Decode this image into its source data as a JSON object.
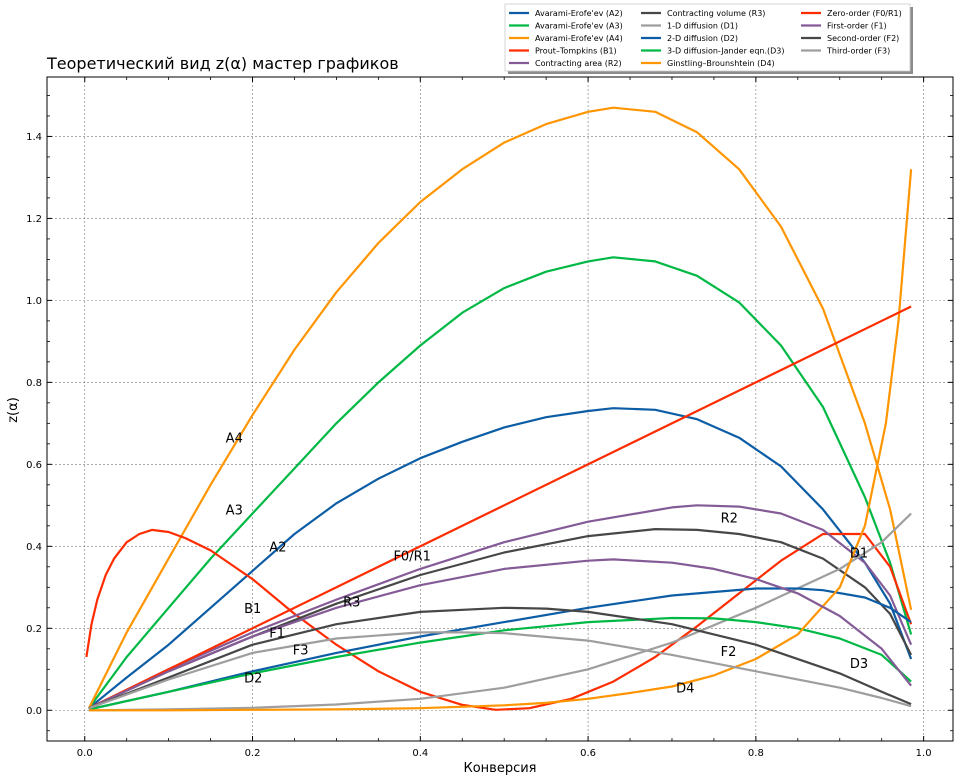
{
  "chart_data": {
    "type": "line",
    "title": "Теоретический вид z(α) мастер графиков",
    "xlabel": "Конверсия",
    "ylabel": "z(α)",
    "xlim": [
      -0.045,
      1.035
    ],
    "ylim": [
      -0.075,
      1.545
    ],
    "xticks": [
      0.0,
      0.2,
      0.4,
      0.6,
      0.8,
      1.0
    ],
    "xtick_labels": [
      "0.0",
      "0.2",
      "0.4",
      "0.6",
      "0.8",
      "1.0"
    ],
    "yticks": [
      0.0,
      0.2,
      0.4,
      0.6,
      0.8,
      1.0,
      1.2,
      1.4
    ],
    "ytick_labels": [
      "0.0",
      "0.2",
      "0.4",
      "0.6",
      "0.8",
      "1.0",
      "1.2",
      "1.4"
    ],
    "grid": true,
    "legend_position": "top-right, above plot",
    "series": [
      {
        "name": "Avarami-Erofe'ev (A2)",
        "color": "#0c5da5",
        "points": [
          [
            0.005,
            0.005
          ],
          [
            0.05,
            0.08
          ],
          [
            0.1,
            0.16
          ],
          [
            0.15,
            0.25
          ],
          [
            0.2,
            0.34
          ],
          [
            0.25,
            0.43
          ],
          [
            0.3,
            0.505
          ],
          [
            0.35,
            0.565
          ],
          [
            0.4,
            0.615
          ],
          [
            0.45,
            0.655
          ],
          [
            0.5,
            0.69
          ],
          [
            0.55,
            0.715
          ],
          [
            0.6,
            0.73
          ],
          [
            0.63,
            0.737
          ],
          [
            0.68,
            0.733
          ],
          [
            0.73,
            0.71
          ],
          [
            0.78,
            0.665
          ],
          [
            0.83,
            0.595
          ],
          [
            0.88,
            0.49
          ],
          [
            0.93,
            0.36
          ],
          [
            0.96,
            0.26
          ],
          [
            0.985,
            0.125
          ]
        ]
      },
      {
        "name": "Avarami-Erofe'ev (A3)",
        "color": "#00b945",
        "points": [
          [
            0.005,
            0.005
          ],
          [
            0.05,
            0.13
          ],
          [
            0.1,
            0.25
          ],
          [
            0.15,
            0.37
          ],
          [
            0.2,
            0.48
          ],
          [
            0.25,
            0.59
          ],
          [
            0.3,
            0.7
          ],
          [
            0.35,
            0.8
          ],
          [
            0.4,
            0.89
          ],
          [
            0.45,
            0.97
          ],
          [
            0.5,
            1.03
          ],
          [
            0.55,
            1.07
          ],
          [
            0.6,
            1.095
          ],
          [
            0.63,
            1.105
          ],
          [
            0.68,
            1.095
          ],
          [
            0.73,
            1.06
          ],
          [
            0.78,
            0.995
          ],
          [
            0.83,
            0.89
          ],
          [
            0.88,
            0.74
          ],
          [
            0.93,
            0.52
          ],
          [
            0.96,
            0.36
          ],
          [
            0.985,
            0.185
          ]
        ]
      },
      {
        "name": "Avarami-Erofe'ev (A4)",
        "color": "#ff9500",
        "points": [
          [
            0.005,
            0.005
          ],
          [
            0.05,
            0.19
          ],
          [
            0.1,
            0.37
          ],
          [
            0.15,
            0.55
          ],
          [
            0.2,
            0.72
          ],
          [
            0.25,
            0.88
          ],
          [
            0.3,
            1.02
          ],
          [
            0.35,
            1.14
          ],
          [
            0.4,
            1.24
          ],
          [
            0.45,
            1.32
          ],
          [
            0.5,
            1.385
          ],
          [
            0.55,
            1.43
          ],
          [
            0.6,
            1.46
          ],
          [
            0.63,
            1.47
          ],
          [
            0.68,
            1.46
          ],
          [
            0.73,
            1.41
          ],
          [
            0.78,
            1.32
          ],
          [
            0.83,
            1.18
          ],
          [
            0.88,
            0.98
          ],
          [
            0.93,
            0.7
          ],
          [
            0.96,
            0.49
          ],
          [
            0.985,
            0.245
          ]
        ]
      },
      {
        "name": "Prout–Tompkins (B1)",
        "color": "#ff2c00",
        "points": [
          [
            0.002,
            0.13
          ],
          [
            0.008,
            0.21
          ],
          [
            0.015,
            0.27
          ],
          [
            0.025,
            0.33
          ],
          [
            0.035,
            0.37
          ],
          [
            0.05,
            0.41
          ],
          [
            0.065,
            0.43
          ],
          [
            0.08,
            0.44
          ],
          [
            0.1,
            0.435
          ],
          [
            0.12,
            0.42
          ],
          [
            0.15,
            0.39
          ],
          [
            0.2,
            0.32
          ],
          [
            0.25,
            0.235
          ],
          [
            0.3,
            0.16
          ],
          [
            0.35,
            0.095
          ],
          [
            0.4,
            0.045
          ],
          [
            0.45,
            0.013
          ],
          [
            0.49,
            0.001
          ],
          [
            0.53,
            0.005
          ],
          [
            0.58,
            0.028
          ],
          [
            0.63,
            0.07
          ],
          [
            0.68,
            0.13
          ],
          [
            0.73,
            0.205
          ],
          [
            0.78,
            0.285
          ],
          [
            0.83,
            0.365
          ],
          [
            0.88,
            0.43
          ],
          [
            0.93,
            0.43
          ],
          [
            0.96,
            0.35
          ],
          [
            0.985,
            0.21
          ]
        ]
      },
      {
        "name": "Contracting area (R2)",
        "color": "#845b97",
        "points": [
          [
            0.005,
            0.005
          ],
          [
            0.1,
            0.1
          ],
          [
            0.2,
            0.19
          ],
          [
            0.3,
            0.27
          ],
          [
            0.4,
            0.345
          ],
          [
            0.5,
            0.41
          ],
          [
            0.6,
            0.46
          ],
          [
            0.7,
            0.495
          ],
          [
            0.73,
            0.5
          ],
          [
            0.78,
            0.497
          ],
          [
            0.83,
            0.48
          ],
          [
            0.88,
            0.44
          ],
          [
            0.93,
            0.36
          ],
          [
            0.96,
            0.28
          ],
          [
            0.985,
            0.16
          ]
        ]
      },
      {
        "name": "Contracting volume (R3)",
        "color": "#474747",
        "points": [
          [
            0.005,
            0.005
          ],
          [
            0.1,
            0.095
          ],
          [
            0.2,
            0.18
          ],
          [
            0.3,
            0.26
          ],
          [
            0.4,
            0.33
          ],
          [
            0.5,
            0.385
          ],
          [
            0.6,
            0.425
          ],
          [
            0.68,
            0.442
          ],
          [
            0.73,
            0.44
          ],
          [
            0.78,
            0.43
          ],
          [
            0.83,
            0.41
          ],
          [
            0.88,
            0.37
          ],
          [
            0.93,
            0.3
          ],
          [
            0.96,
            0.235
          ],
          [
            0.985,
            0.135
          ]
        ]
      },
      {
        "name": "1-D diffusion (D1)",
        "color": "#9e9e9e",
        "points": [
          [
            0.005,
            0.0
          ],
          [
            0.1,
            0.002
          ],
          [
            0.2,
            0.006
          ],
          [
            0.3,
            0.014
          ],
          [
            0.4,
            0.028
          ],
          [
            0.5,
            0.055
          ],
          [
            0.6,
            0.1
          ],
          [
            0.7,
            0.165
          ],
          [
            0.8,
            0.25
          ],
          [
            0.9,
            0.345
          ],
          [
            0.95,
            0.41
          ],
          [
            0.985,
            0.48
          ]
        ]
      },
      {
        "name": "2-D diffusion (D2)",
        "color": "#0c5da5",
        "points": [
          [
            0.005,
            0.002
          ],
          [
            0.1,
            0.045
          ],
          [
            0.2,
            0.095
          ],
          [
            0.3,
            0.14
          ],
          [
            0.4,
            0.18
          ],
          [
            0.5,
            0.215
          ],
          [
            0.6,
            0.25
          ],
          [
            0.7,
            0.28
          ],
          [
            0.8,
            0.297
          ],
          [
            0.85,
            0.297
          ],
          [
            0.88,
            0.293
          ],
          [
            0.93,
            0.275
          ],
          [
            0.96,
            0.25
          ],
          [
            0.985,
            0.215
          ]
        ]
      },
      {
        "name": "3-D diffusion-Jander eqn.(D3)",
        "color": "#00b945",
        "points": [
          [
            0.005,
            0.002
          ],
          [
            0.1,
            0.045
          ],
          [
            0.2,
            0.09
          ],
          [
            0.3,
            0.13
          ],
          [
            0.4,
            0.165
          ],
          [
            0.5,
            0.195
          ],
          [
            0.6,
            0.215
          ],
          [
            0.7,
            0.225
          ],
          [
            0.75,
            0.224
          ],
          [
            0.8,
            0.215
          ],
          [
            0.85,
            0.2
          ],
          [
            0.9,
            0.175
          ],
          [
            0.95,
            0.135
          ],
          [
            0.985,
            0.07
          ]
        ]
      },
      {
        "name": "Ginstling–Brounshtein (D4)",
        "color": "#ff9500",
        "points": [
          [
            0.005,
            0.0
          ],
          [
            0.1,
            0.0
          ],
          [
            0.2,
            0.001
          ],
          [
            0.3,
            0.002
          ],
          [
            0.4,
            0.005
          ],
          [
            0.5,
            0.012
          ],
          [
            0.55,
            0.018
          ],
          [
            0.6,
            0.028
          ],
          [
            0.65,
            0.042
          ],
          [
            0.7,
            0.058
          ],
          [
            0.75,
            0.085
          ],
          [
            0.8,
            0.125
          ],
          [
            0.85,
            0.185
          ],
          [
            0.9,
            0.3
          ],
          [
            0.93,
            0.45
          ],
          [
            0.955,
            0.7
          ],
          [
            0.97,
            0.95
          ],
          [
            0.985,
            1.32
          ]
        ]
      },
      {
        "name": "Zero-order (F0/R1)",
        "color": "#ff2c00",
        "points": [
          [
            0.005,
            0.005
          ],
          [
            0.985,
            0.985
          ]
        ]
      },
      {
        "name": "First-order (F1)",
        "color": "#845b97",
        "points": [
          [
            0.005,
            0.005
          ],
          [
            0.1,
            0.095
          ],
          [
            0.2,
            0.18
          ],
          [
            0.3,
            0.25
          ],
          [
            0.4,
            0.305
          ],
          [
            0.5,
            0.345
          ],
          [
            0.6,
            0.365
          ],
          [
            0.63,
            0.368
          ],
          [
            0.7,
            0.36
          ],
          [
            0.75,
            0.345
          ],
          [
            0.8,
            0.32
          ],
          [
            0.85,
            0.285
          ],
          [
            0.9,
            0.23
          ],
          [
            0.95,
            0.15
          ],
          [
            0.985,
            0.06
          ]
        ]
      },
      {
        "name": "Second-order (F2)",
        "color": "#474747",
        "points": [
          [
            0.005,
            0.005
          ],
          [
            0.1,
            0.08
          ],
          [
            0.2,
            0.16
          ],
          [
            0.3,
            0.21
          ],
          [
            0.4,
            0.24
          ],
          [
            0.5,
            0.25
          ],
          [
            0.55,
            0.248
          ],
          [
            0.6,
            0.24
          ],
          [
            0.7,
            0.21
          ],
          [
            0.8,
            0.16
          ],
          [
            0.9,
            0.09
          ],
          [
            0.95,
            0.045
          ],
          [
            0.985,
            0.015
          ]
        ]
      },
      {
        "name": "Third-order (F3)",
        "color": "#9e9e9e",
        "points": [
          [
            0.005,
            0.005
          ],
          [
            0.1,
            0.075
          ],
          [
            0.2,
            0.14
          ],
          [
            0.3,
            0.175
          ],
          [
            0.4,
            0.19
          ],
          [
            0.45,
            0.19
          ],
          [
            0.5,
            0.188
          ],
          [
            0.6,
            0.17
          ],
          [
            0.7,
            0.135
          ],
          [
            0.8,
            0.095
          ],
          [
            0.9,
            0.055
          ],
          [
            0.95,
            0.03
          ],
          [
            0.985,
            0.01
          ]
        ]
      }
    ],
    "annotations": [
      {
        "text": "A4",
        "x": 0.168,
        "y": 0.665
      },
      {
        "text": "A3",
        "x": 0.168,
        "y": 0.49
      },
      {
        "text": "A2",
        "x": 0.22,
        "y": 0.4
      },
      {
        "text": "F0/R1",
        "x": 0.368,
        "y": 0.378
      },
      {
        "text": "R2",
        "x": 0.758,
        "y": 0.47
      },
      {
        "text": "D1",
        "x": 0.912,
        "y": 0.385
      },
      {
        "text": "R3",
        "x": 0.308,
        "y": 0.265
      },
      {
        "text": "B1",
        "x": 0.19,
        "y": 0.25
      },
      {
        "text": "F1",
        "x": 0.22,
        "y": 0.19
      },
      {
        "text": "F3",
        "x": 0.248,
        "y": 0.148
      },
      {
        "text": "D2",
        "x": 0.19,
        "y": 0.08
      },
      {
        "text": "F2",
        "x": 0.758,
        "y": 0.145
      },
      {
        "text": "D3",
        "x": 0.912,
        "y": 0.115
      },
      {
        "text": "D4",
        "x": 0.705,
        "y": 0.055
      }
    ]
  }
}
